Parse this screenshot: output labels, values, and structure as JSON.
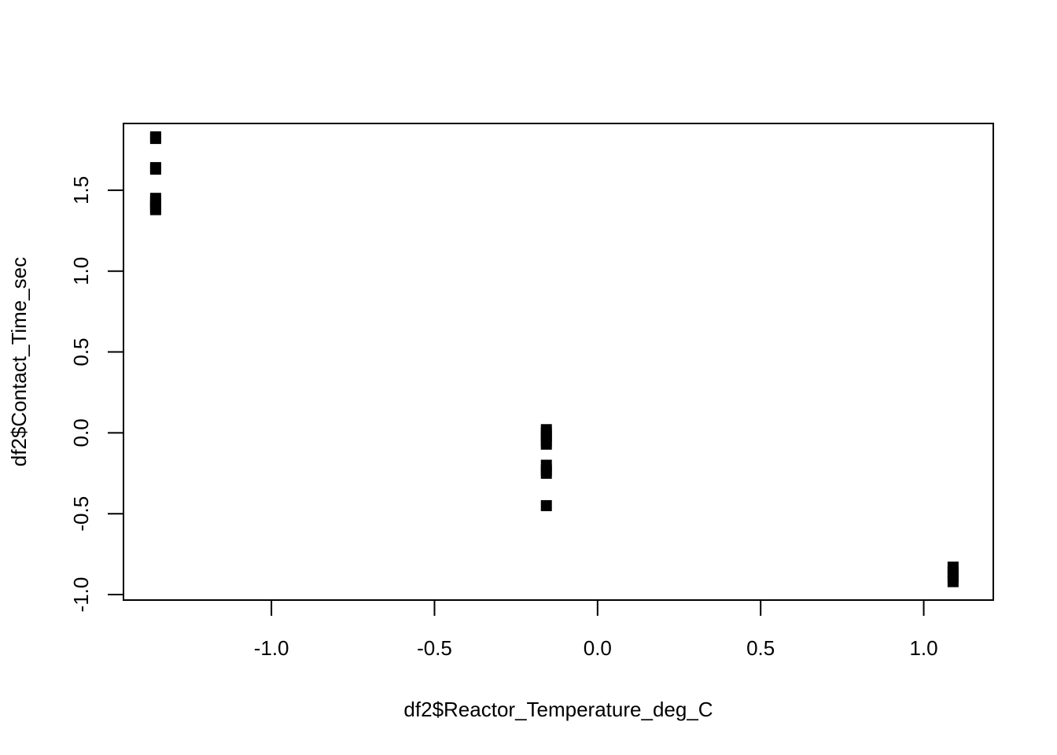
{
  "chart_data": {
    "type": "scatter",
    "title": "",
    "xlabel": "df2$Reactor_Temperature_deg_C",
    "ylabel": "df2$Contact_Time_sec",
    "xlim": [
      -1.4536,
      1.2133
    ],
    "ylim": [
      -1.0338,
      1.9128
    ],
    "x_ticks": [
      -1.0,
      -0.5,
      0.0,
      0.5,
      1.0
    ],
    "x_tick_labels": [
      "-1.0",
      "-0.5",
      "0.0",
      "0.5",
      "1.0"
    ],
    "y_ticks": [
      -1.0,
      -0.5,
      0.0,
      0.5,
      1.0,
      1.5
    ],
    "y_tick_labels": [
      "-1.0",
      "-0.5",
      "0.0",
      "0.5",
      "1.0",
      "1.5"
    ],
    "grid": false,
    "legend": "none",
    "marker": "filled-square",
    "point_color": "#000000",
    "series": [
      {
        "x": [
          -1.355,
          -1.355,
          -1.355,
          -1.355,
          -1.355,
          -1.355,
          -1.355,
          -1.355,
          -1.355,
          -0.157,
          -0.157,
          -0.157,
          -0.157,
          -0.157,
          -0.157,
          -0.157,
          -0.157,
          -0.157,
          1.09,
          1.09,
          1.09,
          1.09
        ],
        "y": [
          1.83,
          1.82,
          1.64,
          1.63,
          1.45,
          1.43,
          1.41,
          1.39,
          1.38,
          0.02,
          0.0,
          -0.02,
          -0.05,
          -0.07,
          -0.2,
          -0.23,
          -0.25,
          -0.45,
          -0.83,
          -0.86,
          -0.89,
          -0.92
        ]
      }
    ]
  }
}
